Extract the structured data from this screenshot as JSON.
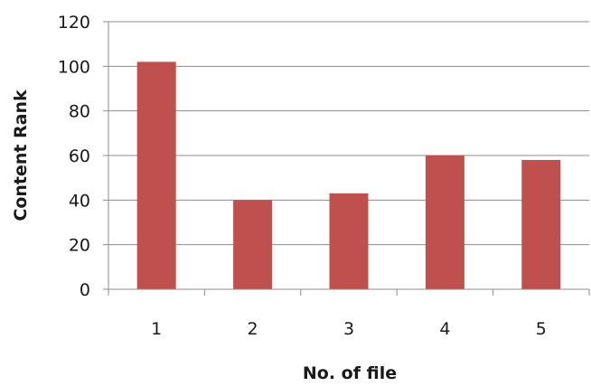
{
  "chart_data": {
    "type": "bar",
    "title": "",
    "xlabel": "No. of file",
    "ylabel": "Content Rank",
    "categories": [
      "1",
      "2",
      "3",
      "4",
      "5"
    ],
    "values": [
      102,
      40,
      43,
      60,
      58
    ],
    "ylim": [
      0,
      120
    ],
    "yticks": [
      0,
      20,
      40,
      60,
      80,
      100,
      120
    ],
    "grid": true,
    "legend": "none",
    "bar_color": "#c0504d",
    "grid_color": "#8c8c8c"
  }
}
